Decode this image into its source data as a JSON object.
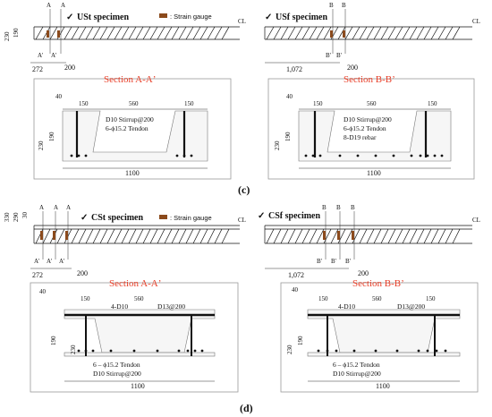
{
  "panel_c": {
    "caption": "(c)",
    "left": {
      "title": "USt specimen",
      "legend": ": Strain gauge",
      "cut_label": "A",
      "cut_label_p": "A'",
      "dims": [
        "230",
        "190",
        "272",
        "200"
      ],
      "centerline": "CL",
      "section_title": "Section A-Aʼ",
      "sec_dims_top": [
        "40",
        "150",
        "560",
        "150"
      ],
      "sec_dims_left": [
        "230",
        "190"
      ],
      "sec_width": "1100",
      "labels": [
        "D10 Stirrup@200",
        "6-ϕ15.2 Tendon"
      ]
    },
    "right": {
      "title": "USf specimen",
      "cut_label": "B",
      "cut_label_p": "B'",
      "dims": [
        "1,072",
        "200"
      ],
      "centerline": "CL",
      "section_title": "Section B-Bʼ",
      "sec_dims_top": [
        "40",
        "150",
        "560",
        "150"
      ],
      "sec_dims_left": [
        "230",
        "190"
      ],
      "sec_width": "1100",
      "labels": [
        "D10 Stirrup@200",
        "6-ϕ15.2 Tendon",
        "8-D19 rebar"
      ]
    }
  },
  "panel_d": {
    "caption": "(d)",
    "left": {
      "title": "CSt specimen",
      "legend": ": Strain gauge",
      "cut_label": "A",
      "cut_label_p": "A'",
      "dims": [
        "330",
        "290",
        "30",
        "272",
        "200"
      ],
      "centerline": "CL",
      "section_title": "Section A-Aʼ",
      "sec_dims_top": [
        "40",
        "150",
        "560"
      ],
      "sec_dims_left": [
        "230",
        "190"
      ],
      "sec_width": "1100",
      "labels": [
        "4-D10",
        "D13@200",
        "6 – ϕ15.2 Tendon",
        "D10 Stirrup@200"
      ]
    },
    "right": {
      "title": "CSf specimen",
      "cut_label": "B",
      "cut_label_p": "B'",
      "dims": [
        "1,072",
        "200"
      ],
      "centerline": "CL",
      "section_title": "Section B-Bʼ",
      "sec_dims_top": [
        "40",
        "150",
        "560",
        "150"
      ],
      "sec_dims_left": [
        "230",
        "190"
      ],
      "sec_width": "1100",
      "labels": [
        "4-D10",
        "D13@200",
        "6 – ϕ15.2 Tendon",
        "D10 Stirrup@200"
      ]
    }
  },
  "colors": {
    "section_title": "#e8402a",
    "gauge": "#8b4a1c",
    "rebar": "#111111"
  },
  "check_glyph": "✓"
}
